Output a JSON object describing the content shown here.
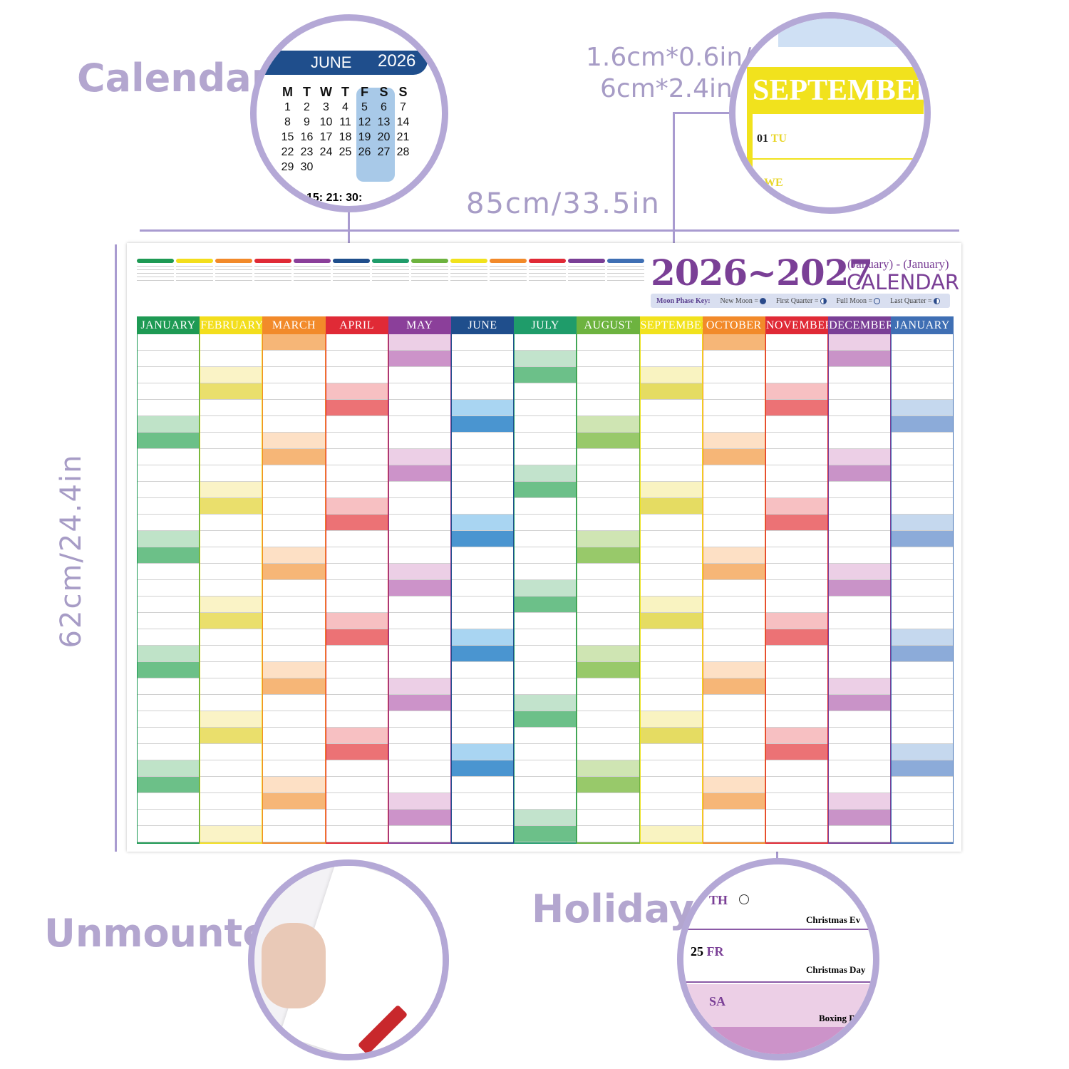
{
  "labels": {
    "calendar": "Calendar",
    "size_small": "1.6cm*0.6in/",
    "size_small2": "6cm*2.4in",
    "width": "85cm/33.5in",
    "height": "62cm/24.4in",
    "unmounted": "Unmounted",
    "holidays": "Holidays"
  },
  "poster": {
    "title": "2026~2027",
    "subtitle": "(January) - (January)",
    "calendar_word": "CALENDAR",
    "moon_key": {
      "title": "Moon Phase Key:",
      "items": [
        "New Moon =",
        "First Quarter =",
        "Full Moon =",
        "Last Quarter ="
      ]
    },
    "months": [
      {
        "name": "JANUARY",
        "color": "#1e9a54",
        "light": "#bfe3c8",
        "dark": "#6cc088"
      },
      {
        "name": "FEBRUARY",
        "color": "#f3de1c",
        "light": "#faf3c6",
        "dark": "#eadf6c"
      },
      {
        "name": "MARCH",
        "color": "#f28a2a",
        "light": "#fde0c5",
        "dark": "#f6b677"
      },
      {
        "name": "APRIL",
        "color": "#e02a36",
        "light": "#f7c0c2",
        "dark": "#ec7275"
      },
      {
        "name": "MAY",
        "color": "#8b3f9a",
        "light": "#eccfe6",
        "dark": "#cc93c9"
      },
      {
        "name": "JUNE",
        "color": "#1f4e8c",
        "light": "#a9d5f2",
        "dark": "#4a95d0"
      },
      {
        "name": "JULY",
        "color": "#1f9c6a",
        "light": "#c2e3cc",
        "dark": "#6cc089"
      },
      {
        "name": "AUGUST",
        "color": "#6db33f",
        "light": "#cfe5b3",
        "dark": "#98c96a"
      },
      {
        "name": "SEPTEMBER",
        "color": "#f1e21d",
        "light": "#f9f3c1",
        "dark": "#e5dc62"
      },
      {
        "name": "OCTOBER",
        "color": "#f28a2a",
        "light": "#fde0c5",
        "dark": "#f6b677"
      },
      {
        "name": "NOVEMBER",
        "color": "#e02a36",
        "light": "#f7c0c2",
        "dark": "#ec7275"
      },
      {
        "name": "DECEMBER",
        "color": "#7a3f96",
        "light": "#eccfe6",
        "dark": "#c993c8"
      },
      {
        "name": "JANUARY",
        "color": "#3f6fb4",
        "light": "#c5d8ee",
        "dark": "#8cabd9"
      }
    ]
  },
  "june_zoom": {
    "month": "JUNE",
    "year": "2026",
    "weekdays": [
      "M",
      "T",
      "W",
      "T",
      "F",
      "S",
      "S"
    ],
    "weeks": [
      [
        "1",
        "2",
        "3",
        "4",
        "5",
        "6",
        "7"
      ],
      [
        "8",
        "9",
        "10",
        "11",
        "12",
        "13",
        "14"
      ],
      [
        "15",
        "16",
        "17",
        "18",
        "19",
        "20",
        "21"
      ],
      [
        "22",
        "23",
        "24",
        "25",
        "26",
        "27",
        "28"
      ],
      [
        "29",
        "30",
        "",
        "",
        "",
        "",
        ""
      ]
    ],
    "moons": "15: 21: 30:"
  },
  "sept_zoom": {
    "header": "SEPTEMBER",
    "row1_num": "01",
    "row1_day": "TU",
    "row2_day": "WE"
  },
  "holiday_zoom": {
    "row1_day": "TH",
    "row1_holiday": "Christmas Ev",
    "row2_num": "25",
    "row2_day": "FR",
    "row2_holiday": "Christmas Day",
    "row3_day": "SA",
    "row3_holiday": "Boxing D"
  }
}
